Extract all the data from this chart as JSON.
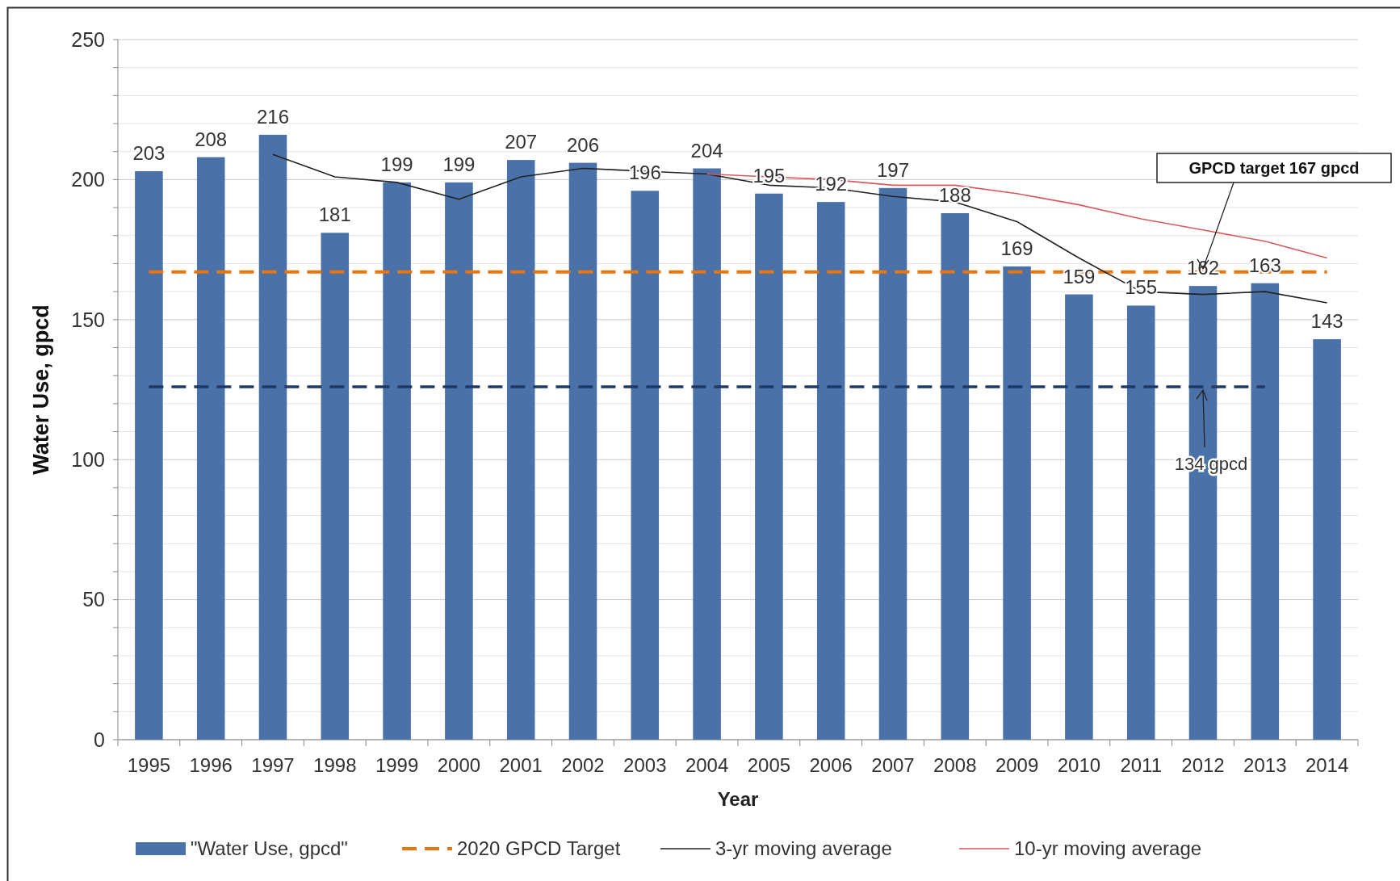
{
  "chart_data": {
    "type": "bar",
    "xlabel": "Year",
    "ylabel": "Water Use, gpcd",
    "categories": [
      "1995",
      "1996",
      "1997",
      "1998",
      "1999",
      "2000",
      "2001",
      "2002",
      "2003",
      "2004",
      "2005",
      "2006",
      "2007",
      "2008",
      "2009",
      "2010",
      "2011",
      "2012",
      "2013",
      "2014"
    ],
    "series": [
      {
        "name": "\"Water Use, gpcd\"",
        "color": "#4a72a8",
        "values": [
          203,
          208,
          216,
          181,
          199,
          199,
          207,
          206,
          196,
          204,
          195,
          192,
          197,
          188,
          169,
          159,
          155,
          162,
          163,
          143
        ],
        "value_labels": [
          "203",
          "208",
          "216",
          "181",
          "199",
          "199",
          "207",
          "206",
          "196",
          "204",
          "195",
          "192",
          "197",
          "188",
          "169",
          "159",
          "155",
          "162",
          "163",
          "143"
        ]
      },
      {
        "name": "2020 GPCD Target",
        "type": "line",
        "color": "#e8760f",
        "line_style": "dashed",
        "values": [
          167,
          167,
          167,
          167,
          167,
          167,
          167,
          167,
          167,
          167,
          167,
          167,
          167,
          167,
          167,
          167,
          167,
          167,
          167,
          167
        ]
      },
      {
        "name": "3-yr moving average",
        "type": "line",
        "color": "#222222",
        "values": [
          null,
          null,
          209,
          201,
          199,
          193,
          201,
          204,
          203,
          202,
          198,
          197,
          194,
          192,
          185,
          172,
          160,
          159,
          160,
          156
        ]
      },
      {
        "name": "10-yr moving average",
        "type": "line",
        "color": "#d9595f",
        "values": [
          null,
          null,
          null,
          null,
          null,
          null,
          null,
          null,
          null,
          202,
          201,
          200,
          198,
          198,
          195,
          191,
          186,
          182,
          178,
          172
        ]
      }
    ],
    "marker": "none",
    "ylim": [
      0,
      250
    ],
    "yticks": [
      0,
      {
        "value": 10,
        "label": null
      },
      {
        "value": 20,
        "label": null
      },
      {
        "value": 30,
        "label": null
      },
      {
        "value": 40,
        "label": null
      },
      50,
      {
        "value": 60,
        "label": null
      },
      {
        "value": 70,
        "label": null
      },
      {
        "value": 80,
        "label": null
      },
      {
        "value": 90,
        "label": null
      },
      100,
      {
        "value": 110,
        "label": null
      },
      {
        "value": 120,
        "label": null
      },
      {
        "value": 130,
        "label": null
      },
      {
        "value": 140,
        "label": null
      },
      150,
      {
        "value": 160,
        "label": null
      },
      {
        "value": 170,
        "label": null
      },
      {
        "value": 180,
        "label": null
      },
      {
        "value": 190,
        "label": null
      },
      200,
      {
        "value": 210,
        "label": null
      },
      {
        "value": 220,
        "label": null
      },
      {
        "value": 230,
        "label": null
      },
      {
        "value": 240,
        "label": null
      },
      250
    ],
    "grid": "y",
    "ref_lines": [
      {
        "axis": "y",
        "value": 126,
        "color": "#1f3864",
        "line_style": "dashed"
      }
    ],
    "annotations": [
      {
        "text": "GPCD target 167 gpcd",
        "x": "2012",
        "y": 167
      },
      {
        "text": "134 gpcd",
        "x": "2012",
        "y": 126
      }
    ],
    "legend": "bottom"
  }
}
